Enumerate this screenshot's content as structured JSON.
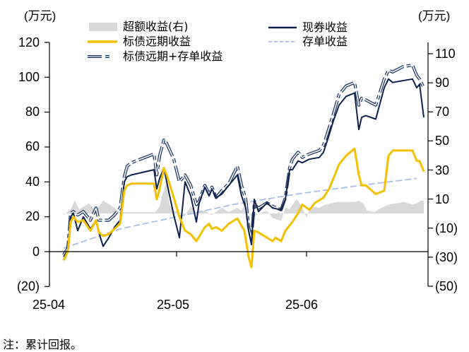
{
  "chart_data": {
    "type": "line",
    "title": "",
    "left_axis": {
      "unit_label": "(万元)",
      "ticks": [
        "120",
        "100",
        "80",
        "60",
        "40",
        "20",
        "0",
        "(20)"
      ],
      "ylim": [
        -20,
        120
      ]
    },
    "right_axis": {
      "unit_label": "(万元)",
      "ticks": [
        "110",
        "90",
        "70",
        "50",
        "30",
        "10",
        "(10)",
        "(30)",
        "(50)"
      ],
      "ylim": [
        -50,
        110
      ]
    },
    "x_ticks": [
      "25-04",
      "25-05",
      "25-06"
    ],
    "legend": [
      {
        "name": "超额收益(右)",
        "style": "area",
        "color": "#d9d9d9"
      },
      {
        "name": "标债远期收益",
        "style": "line",
        "color": "#f5c000"
      },
      {
        "name": "标债远期+存单收益",
        "style": "double-dashed",
        "color": "#1f3864"
      },
      {
        "name": "现券收益",
        "style": "line",
        "color": "#0d2050"
      },
      {
        "name": "存单收益",
        "style": "dashed",
        "color": "#a9bde6"
      }
    ],
    "series": [
      {
        "name": "现券收益",
        "axis": "left",
        "points": [
          [
            90,
            -3
          ],
          [
            96,
            1
          ],
          [
            100,
            20
          ],
          [
            104,
            22
          ],
          [
            110,
            12
          ],
          [
            118,
            20
          ],
          [
            128,
            13
          ],
          [
            136,
            18
          ],
          [
            140,
            11
          ],
          [
            146,
            3
          ],
          [
            154,
            8
          ],
          [
            162,
            14
          ],
          [
            170,
            18
          ],
          [
            176,
            40
          ],
          [
            180,
            43
          ],
          [
            186,
            44
          ],
          [
            218,
            47
          ],
          [
            222,
            36
          ],
          [
            226,
            42
          ],
          [
            232,
            48
          ],
          [
            236,
            40
          ],
          [
            246,
            21
          ],
          [
            254,
            8
          ],
          [
            262,
            40
          ],
          [
            270,
            32
          ],
          [
            278,
            17
          ],
          [
            282,
            28
          ],
          [
            290,
            37
          ],
          [
            296,
            32
          ],
          [
            300,
            36
          ],
          [
            306,
            31
          ],
          [
            314,
            33
          ],
          [
            324,
            38
          ],
          [
            336,
            44
          ],
          [
            342,
            32
          ],
          [
            348,
            25
          ],
          [
            352,
            12
          ],
          [
            356,
            4
          ],
          [
            360,
            30
          ],
          [
            366,
            23
          ],
          [
            378,
            28
          ],
          [
            386,
            25
          ],
          [
            398,
            24
          ],
          [
            404,
            30
          ],
          [
            410,
            47
          ],
          [
            414,
            47
          ],
          [
            422,
            52
          ],
          [
            428,
            51
          ],
          [
            438,
            53
          ],
          [
            452,
            54
          ],
          [
            458,
            57
          ],
          [
            466,
            67
          ],
          [
            472,
            75
          ],
          [
            480,
            84
          ],
          [
            490,
            89
          ],
          [
            502,
            91
          ],
          [
            508,
            70
          ],
          [
            512,
            77
          ],
          [
            518,
            78
          ],
          [
            532,
            76
          ],
          [
            544,
            94
          ],
          [
            550,
            99
          ],
          [
            556,
            97
          ],
          [
            570,
            98
          ],
          [
            584,
            99
          ],
          [
            590,
            94
          ],
          [
            594,
            96
          ],
          [
            600,
            77
          ]
        ]
      },
      {
        "name": "标债远期收益",
        "axis": "left",
        "points": [
          [
            90,
            -5
          ],
          [
            96,
            0
          ],
          [
            100,
            17
          ],
          [
            104,
            20
          ],
          [
            110,
            17
          ],
          [
            118,
            18
          ],
          [
            128,
            12
          ],
          [
            136,
            18
          ],
          [
            140,
            11
          ],
          [
            146,
            9
          ],
          [
            154,
            10
          ],
          [
            162,
            13
          ],
          [
            170,
            16
          ],
          [
            176,
            35
          ],
          [
            180,
            38
          ],
          [
            186,
            39
          ],
          [
            218,
            39
          ],
          [
            222,
            30
          ],
          [
            226,
            36
          ],
          [
            232,
            48
          ],
          [
            236,
            44
          ],
          [
            246,
            31
          ],
          [
            254,
            20
          ],
          [
            262,
            12
          ],
          [
            270,
            10
          ],
          [
            278,
            6
          ],
          [
            290,
            14
          ],
          [
            296,
            16
          ],
          [
            300,
            13
          ],
          [
            306,
            14
          ],
          [
            314,
            12
          ],
          [
            324,
            16
          ],
          [
            336,
            19
          ],
          [
            346,
            12
          ],
          [
            352,
            -3
          ],
          [
            356,
            -9
          ],
          [
            360,
            12
          ],
          [
            366,
            11
          ],
          [
            378,
            8
          ],
          [
            386,
            6
          ],
          [
            390,
            8
          ],
          [
            398,
            6
          ],
          [
            404,
            12
          ],
          [
            414,
            17
          ],
          [
            422,
            22
          ],
          [
            428,
            27
          ],
          [
            438,
            24
          ],
          [
            446,
            28
          ],
          [
            458,
            31
          ],
          [
            466,
            36
          ],
          [
            472,
            42
          ],
          [
            480,
            50
          ],
          [
            490,
            55
          ],
          [
            502,
            59
          ],
          [
            508,
            44
          ],
          [
            512,
            38
          ],
          [
            518,
            38
          ],
          [
            532,
            33
          ],
          [
            544,
            35
          ],
          [
            550,
            55
          ],
          [
            556,
            58
          ],
          [
            570,
            58
          ],
          [
            584,
            58
          ],
          [
            590,
            52
          ],
          [
            594,
            52
          ],
          [
            600,
            46
          ]
        ]
      },
      {
        "name": "标债远期+存单收益",
        "axis": "left",
        "points": [
          [
            90,
            -2
          ],
          [
            96,
            2
          ],
          [
            100,
            22
          ],
          [
            104,
            23
          ],
          [
            110,
            21
          ],
          [
            118,
            23
          ],
          [
            128,
            18
          ],
          [
            136,
            25
          ],
          [
            140,
            18
          ],
          [
            146,
            18
          ],
          [
            154,
            18
          ],
          [
            162,
            21
          ],
          [
            170,
            25
          ],
          [
            176,
            43
          ],
          [
            180,
            49
          ],
          [
            186,
            51
          ],
          [
            218,
            56
          ],
          [
            222,
            44
          ],
          [
            226,
            55
          ],
          [
            232,
            64
          ],
          [
            236,
            62
          ],
          [
            246,
            53
          ],
          [
            254,
            40
          ],
          [
            262,
            44
          ],
          [
            270,
            38
          ],
          [
            278,
            27
          ],
          [
            282,
            29
          ],
          [
            290,
            38
          ],
          [
            296,
            33
          ],
          [
            300,
            37
          ],
          [
            306,
            31
          ],
          [
            314,
            35
          ],
          [
            324,
            39
          ],
          [
            336,
            49
          ],
          [
            342,
            38
          ],
          [
            348,
            30
          ],
          [
            352,
            14
          ],
          [
            356,
            8
          ],
          [
            360,
            27
          ],
          [
            366,
            25
          ],
          [
            378,
            28
          ],
          [
            386,
            26
          ],
          [
            398,
            24
          ],
          [
            404,
            31
          ],
          [
            410,
            48
          ],
          [
            414,
            53
          ],
          [
            422,
            57
          ],
          [
            428,
            54
          ],
          [
            438,
            56
          ],
          [
            452,
            58
          ],
          [
            458,
            61
          ],
          [
            466,
            71
          ],
          [
            472,
            79
          ],
          [
            480,
            90
          ],
          [
            490,
            95
          ],
          [
            502,
            97
          ],
          [
            508,
            84
          ],
          [
            512,
            88
          ],
          [
            518,
            87
          ],
          [
            532,
            84
          ],
          [
            544,
            99
          ],
          [
            550,
            104
          ],
          [
            556,
            103
          ],
          [
            570,
            106
          ],
          [
            584,
            107
          ],
          [
            590,
            101
          ],
          [
            594,
            99
          ],
          [
            600,
            94
          ]
        ]
      },
      {
        "name": "存单收益",
        "axis": "left",
        "points": [
          [
            90,
            2
          ],
          [
            170,
            13
          ],
          [
            250,
            20
          ],
          [
            330,
            27
          ],
          [
            420,
            33
          ],
          [
            510,
            38
          ],
          [
            590,
            42
          ]
        ]
      },
      {
        "name": "超额收益(右)",
        "axis": "right",
        "points": [
          [
            90,
            -1
          ],
          [
            100,
            3
          ],
          [
            106,
            9
          ],
          [
            112,
            3
          ],
          [
            126,
            7
          ],
          [
            136,
            2
          ],
          [
            146,
            9
          ],
          [
            156,
            6
          ],
          [
            170,
            1
          ],
          [
            180,
            1
          ],
          [
            200,
            1
          ],
          [
            220,
            1
          ],
          [
            226,
            5
          ],
          [
            230,
            13
          ],
          [
            236,
            22
          ],
          [
            240,
            6
          ],
          [
            246,
            2
          ],
          [
            254,
            1
          ],
          [
            262,
            -1
          ],
          [
            270,
            5
          ],
          [
            278,
            1
          ],
          [
            290,
            2
          ],
          [
            300,
            -1
          ],
          [
            314,
            4
          ],
          [
            324,
            1
          ],
          [
            336,
            4
          ],
          [
            342,
            2
          ],
          [
            348,
            8
          ],
          [
            352,
            1
          ],
          [
            356,
            -3
          ],
          [
            366,
            0
          ],
          [
            378,
            2
          ],
          [
            386,
            -3
          ],
          [
            398,
            -5
          ],
          [
            404,
            4
          ],
          [
            410,
            3
          ],
          [
            420,
            10
          ],
          [
            428,
            4
          ],
          [
            434,
            -3
          ],
          [
            440,
            5
          ],
          [
            452,
            4
          ],
          [
            460,
            6
          ],
          [
            468,
            7
          ],
          [
            478,
            8
          ],
          [
            490,
            8
          ],
          [
            502,
            8
          ],
          [
            508,
            9
          ],
          [
            514,
            7
          ],
          [
            520,
            2
          ],
          [
            530,
            1
          ],
          [
            540,
            4
          ],
          [
            550,
            6
          ],
          [
            560,
            7
          ],
          [
            572,
            8
          ],
          [
            584,
            6
          ],
          [
            590,
            7
          ],
          [
            596,
            9
          ],
          [
            600,
            9
          ]
        ]
      }
    ]
  },
  "labels": {
    "left_unit": "(万元)",
    "right_unit": "(万元)",
    "left_ticks": [
      "120",
      "100",
      "80",
      "60",
      "40",
      "20",
      "0",
      "(20)"
    ],
    "right_ticks": [
      "110",
      "90",
      "70",
      "50",
      "30",
      "10",
      "(10)",
      "(30)",
      "(50)"
    ],
    "x_ticks": [
      "25-04",
      "25-05",
      "25-06"
    ],
    "legend": [
      "超额收益(右)",
      "标债远期收益",
      "标债远期+存单收益",
      "现券收益",
      "存单收益"
    ],
    "note": "注：累计回报。"
  },
  "colors": {
    "excess_area": "#d9d9d9",
    "bond_forward": "#f5c000",
    "combo": "#1f3864",
    "cash_bond": "#0d2050",
    "cd": "#a9bde6",
    "axis": "#000000"
  }
}
